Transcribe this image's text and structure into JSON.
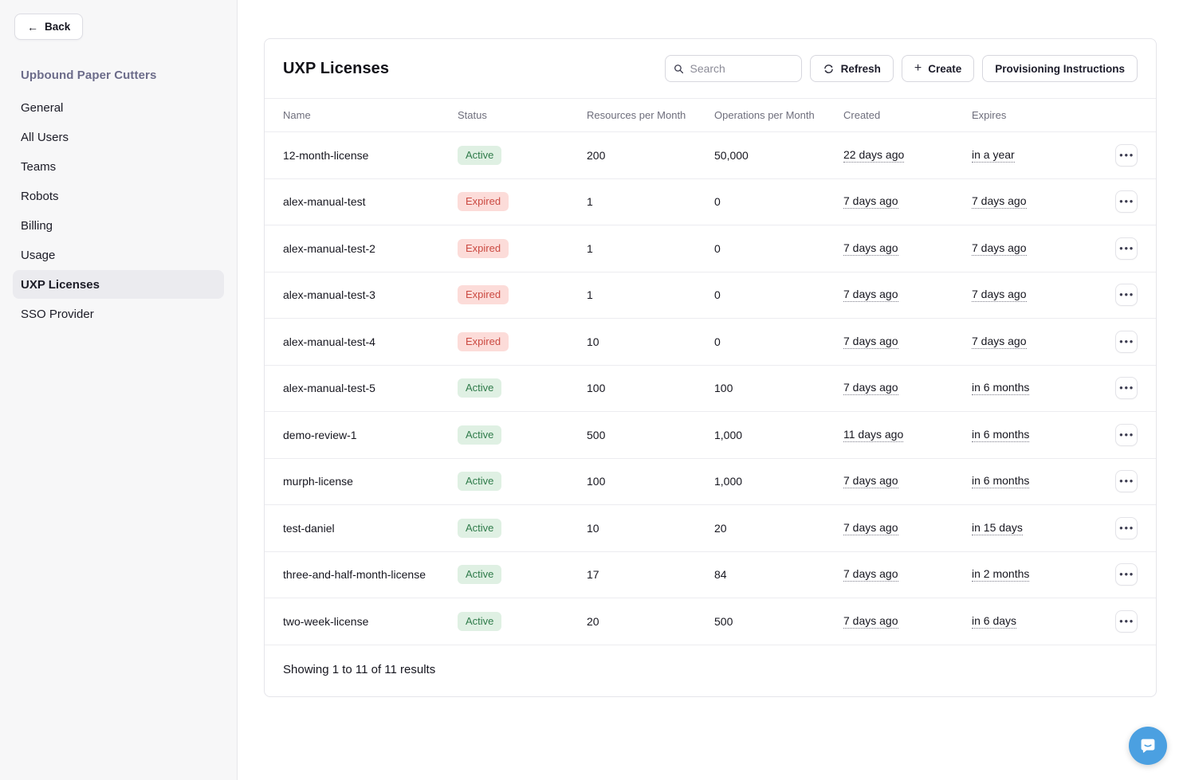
{
  "sidebar": {
    "back_label": "Back",
    "org_name": "Upbound Paper Cutters",
    "items": [
      {
        "label": "General",
        "slug": "general",
        "active": false
      },
      {
        "label": "All Users",
        "slug": "all-users",
        "active": false
      },
      {
        "label": "Teams",
        "slug": "teams",
        "active": false
      },
      {
        "label": "Robots",
        "slug": "robots",
        "active": false
      },
      {
        "label": "Billing",
        "slug": "billing",
        "active": false
      },
      {
        "label": "Usage",
        "slug": "usage",
        "active": false
      },
      {
        "label": "UXP Licenses",
        "slug": "uxp-licenses",
        "active": true
      },
      {
        "label": "SSO Provider",
        "slug": "sso-provider",
        "active": false
      }
    ]
  },
  "header": {
    "title": "UXP Licenses",
    "search_placeholder": "Search",
    "refresh_label": "Refresh",
    "create_label": "Create",
    "provisioning_label": "Provisioning Instructions"
  },
  "table": {
    "columns": [
      "Name",
      "Status",
      "Resources per Month",
      "Operations per Month",
      "Created",
      "Expires"
    ],
    "rows": [
      {
        "name": "12-month-license",
        "status": "Active",
        "resources": "200",
        "operations": "50,000",
        "created": "22 days ago",
        "expires": "in a year"
      },
      {
        "name": "alex-manual-test",
        "status": "Expired",
        "resources": "1",
        "operations": "0",
        "created": "7 days ago",
        "expires": "7 days ago"
      },
      {
        "name": "alex-manual-test-2",
        "status": "Expired",
        "resources": "1",
        "operations": "0",
        "created": "7 days ago",
        "expires": "7 days ago"
      },
      {
        "name": "alex-manual-test-3",
        "status": "Expired",
        "resources": "1",
        "operations": "0",
        "created": "7 days ago",
        "expires": "7 days ago"
      },
      {
        "name": "alex-manual-test-4",
        "status": "Expired",
        "resources": "10",
        "operations": "0",
        "created": "7 days ago",
        "expires": "7 days ago"
      },
      {
        "name": "alex-manual-test-5",
        "status": "Active",
        "resources": "100",
        "operations": "100",
        "created": "7 days ago",
        "expires": "in 6 months"
      },
      {
        "name": "demo-review-1",
        "status": "Active",
        "resources": "500",
        "operations": "1,000",
        "created": "11 days ago",
        "expires": "in 6 months"
      },
      {
        "name": "murph-license",
        "status": "Active",
        "resources": "100",
        "operations": "1,000",
        "created": "7 days ago",
        "expires": "in 6 months"
      },
      {
        "name": "test-daniel",
        "status": "Active",
        "resources": "10",
        "operations": "20",
        "created": "7 days ago",
        "expires": "in 15 days"
      },
      {
        "name": "three-and-half-month-license",
        "status": "Active",
        "resources": "17",
        "operations": "84",
        "created": "7 days ago",
        "expires": "in 2 months"
      },
      {
        "name": "two-week-license",
        "status": "Active",
        "resources": "20",
        "operations": "500",
        "created": "7 days ago",
        "expires": "in 6 days"
      }
    ],
    "footer": "Showing 1 to 11 of 11 results"
  },
  "colors": {
    "active_badge_bg": "#dff0e3",
    "active_badge_text": "#2f7b4a",
    "expired_badge_bg": "#fcdcd9",
    "expired_badge_text": "#cb4a42",
    "sidebar_bg": "#f7f7f8",
    "selected_item_bg": "#ebebef",
    "org_name_text": "#6c6c8a",
    "chat_launcher_blue": "#4ba0e1"
  }
}
